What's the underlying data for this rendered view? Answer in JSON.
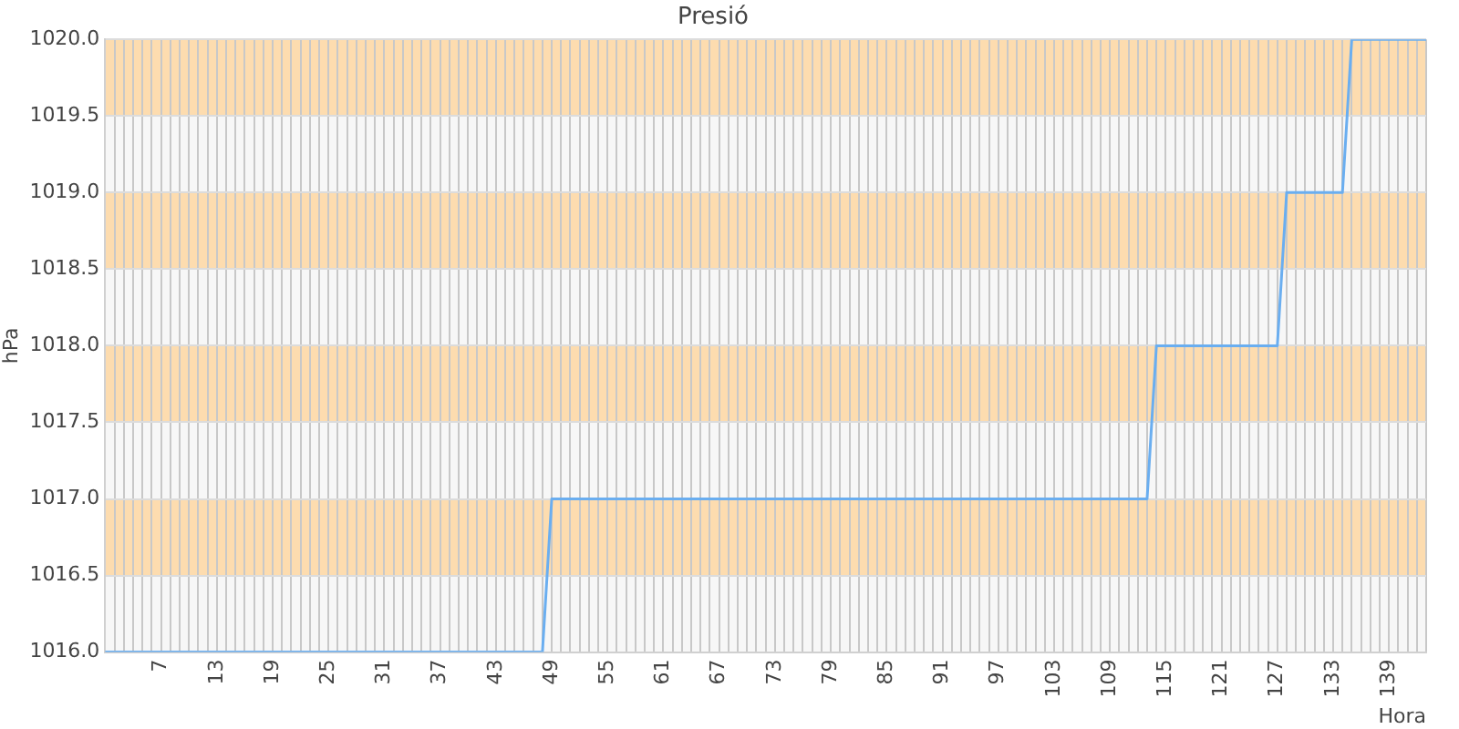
{
  "chart_data": {
    "type": "line",
    "title": "Presió",
    "xlabel": "Hora",
    "ylabel": "hPa",
    "categories": [
      null,
      null,
      null,
      null,
      null,
      null,
      "7",
      null,
      null,
      null,
      null,
      null,
      "13",
      null,
      null,
      null,
      null,
      null,
      "19",
      null,
      null,
      null,
      null,
      null,
      "25",
      null,
      null,
      null,
      null,
      null,
      "31",
      null,
      null,
      null,
      null,
      null,
      "37",
      null,
      null,
      null,
      null,
      null,
      "43",
      null,
      null,
      null,
      null,
      null,
      "49",
      null,
      null,
      null,
      null,
      null,
      "55",
      null,
      null,
      null,
      null,
      null,
      "61",
      null,
      null,
      null,
      null,
      null,
      "67",
      null,
      null,
      null,
      null,
      null,
      "73",
      null,
      null,
      null,
      null,
      null,
      "79",
      null,
      null,
      null,
      null,
      null,
      "85",
      null,
      null,
      null,
      null,
      null,
      "91",
      null,
      null,
      null,
      null,
      null,
      "97",
      null,
      null,
      null,
      null,
      null,
      "103",
      null,
      null,
      null,
      null,
      null,
      "109",
      null,
      null,
      null,
      null,
      null,
      "115",
      null,
      null,
      null,
      null,
      null,
      "121",
      null,
      null,
      null,
      null,
      null,
      "127",
      null,
      null,
      null,
      null,
      null,
      "133",
      null,
      null,
      null,
      null,
      null,
      "139",
      null,
      null,
      null,
      null
    ],
    "series": [
      {
        "color": "#6aaef0",
        "values": [
          1016,
          1016,
          1016,
          1016,
          1016,
          1016,
          1016,
          1016,
          1016,
          1016,
          1016,
          1016,
          1016,
          1016,
          1016,
          1016,
          1016,
          1016,
          1016,
          1016,
          1016,
          1016,
          1016,
          1016,
          1016,
          1016,
          1016,
          1016,
          1016,
          1016,
          1016,
          1016,
          1016,
          1016,
          1016,
          1016,
          1016,
          1016,
          1016,
          1016,
          1016,
          1016,
          1016,
          1016,
          1016,
          1016,
          1016,
          1016,
          1017,
          1017,
          1017,
          1017,
          1017,
          1017,
          1017,
          1017,
          1017,
          1017,
          1017,
          1017,
          1017,
          1017,
          1017,
          1017,
          1017,
          1017,
          1017,
          1017,
          1017,
          1017,
          1017,
          1017,
          1017,
          1017,
          1017,
          1017,
          1017,
          1017,
          1017,
          1017,
          1017,
          1017,
          1017,
          1017,
          1017,
          1017,
          1017,
          1017,
          1017,
          1017,
          1017,
          1017,
          1017,
          1017,
          1017,
          1017,
          1017,
          1017,
          1017,
          1017,
          1017,
          1017,
          1017,
          1017,
          1017,
          1017,
          1017,
          1017,
          1017,
          1017,
          1017,
          1017,
          1017,
          1018,
          1018,
          1018,
          1018,
          1018,
          1018,
          1018,
          1018,
          1018,
          1018,
          1018,
          1018,
          1018,
          1018,
          1019,
          1019,
          1019,
          1019,
          1019,
          1019,
          1019,
          1020,
          1020,
          1020,
          1020,
          1020,
          1020,
          1020,
          1020,
          1020
        ]
      }
    ],
    "ylim": [
      1016,
      1020
    ],
    "yticks": [
      {
        "value": 1016,
        "label": "1016.0"
      },
      {
        "value": 1016.5,
        "label": "1016.5"
      },
      {
        "value": 1017,
        "label": "1017.0"
      },
      {
        "value": 1017.5,
        "label": "1017.5"
      },
      {
        "value": 1018,
        "label": "1018.0"
      },
      {
        "value": 1018.5,
        "label": "1018.5"
      },
      {
        "value": 1019,
        "label": "1019.0"
      },
      {
        "value": 1019.5,
        "label": "1019.5"
      },
      {
        "value": 1020,
        "label": "1020.0"
      }
    ],
    "bands": [
      {
        "axis": "y",
        "from": 1016.5,
        "to": 1017,
        "color": "#fddcaf"
      },
      {
        "axis": "y",
        "from": 1017.5,
        "to": 1018,
        "color": "#fddcaf"
      },
      {
        "axis": "y",
        "from": 1018.5,
        "to": 1019,
        "color": "#fddcaf"
      },
      {
        "axis": "y",
        "from": 1019.5,
        "to": 1020,
        "color": "#fddcaf"
      }
    ],
    "grid": true,
    "marker": "none",
    "line_style": "solid",
    "legend": false
  }
}
